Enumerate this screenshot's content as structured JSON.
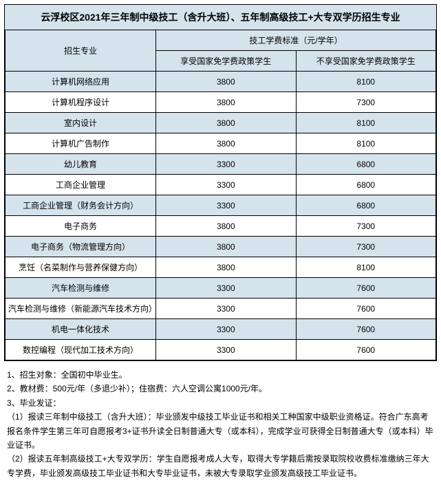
{
  "title": "云浮校区2021年三年制中级技工（含升大班）、五年制高级技工+大专双学历招生专业",
  "header": {
    "col_major": "招生专业",
    "col_fee_group": "技工学费标准（元/学年）",
    "col_subsidized": "享受国家免学费政策学生",
    "col_full": "不享受国家免学费政策学生"
  },
  "rows": [
    {
      "major": "计算机网络应用",
      "subsidized": "3800",
      "full": "8100"
    },
    {
      "major": "计算机程序设计",
      "subsidized": "3800",
      "full": "7300"
    },
    {
      "major": "室内设计",
      "subsidized": "3800",
      "full": "8100"
    },
    {
      "major": "计算机广告制作",
      "subsidized": "3800",
      "full": "8100"
    },
    {
      "major": "幼儿教育",
      "subsidized": "3300",
      "full": "6800"
    },
    {
      "major": "工商企业管理",
      "subsidized": "3300",
      "full": "6800"
    },
    {
      "major": "工商企业管理（财务会计方向）",
      "subsidized": "3300",
      "full": "6800"
    },
    {
      "major": "电子商务",
      "subsidized": "3800",
      "full": "7300"
    },
    {
      "major": "电子商务（物流管理方向）",
      "subsidized": "3800",
      "full": "7300"
    },
    {
      "major": "烹饪（名菜制作与营养保健方向）",
      "subsidized": "3800",
      "full": "8100"
    },
    {
      "major": "汽车检测与维修",
      "subsidized": "3300",
      "full": "7600"
    },
    {
      "major": "汽车检测与维修（新能源汽车技术方向）",
      "subsidized": "3300",
      "full": "7600"
    },
    {
      "major": "机电一体化技术",
      "subsidized": "3300",
      "full": "7600"
    },
    {
      "major": "数控编程（现代加工技术方向）",
      "subsidized": "3300",
      "full": "7600"
    }
  ],
  "notes": [
    "1、招生对象：全国初中毕业生。",
    "2、教材费：500元/年（多退少补）；住宿费：六人空调公寓1000元/年。",
    "3、毕业发证：",
    "（1）报读三年制中级技工（含升大班）：毕业颁发中级技工毕业证书和相关工种国家中级职业资格证。符合广东高考报名条件学生第三年可自愿报考3+证书升读全日制普通大专（或本科），完成学业可获得全日制普通大专（或本科）毕业证书。",
    "（2）报读五年制高级技工+大专双学历：学生自愿报考成人大专，取得大专学籍后需按录取院校收费标准缴纳三年大专学费，毕业颁发高级技工毕业证书和大专毕业证书，未被大专录取学业颁发高级技工毕业证书。"
  ],
  "colors": {
    "band": "#d5e3ed",
    "border": "#000000",
    "bg": "#ffffff"
  },
  "font_sizes": {
    "title_pt": 14,
    "body_pt": 12
  }
}
